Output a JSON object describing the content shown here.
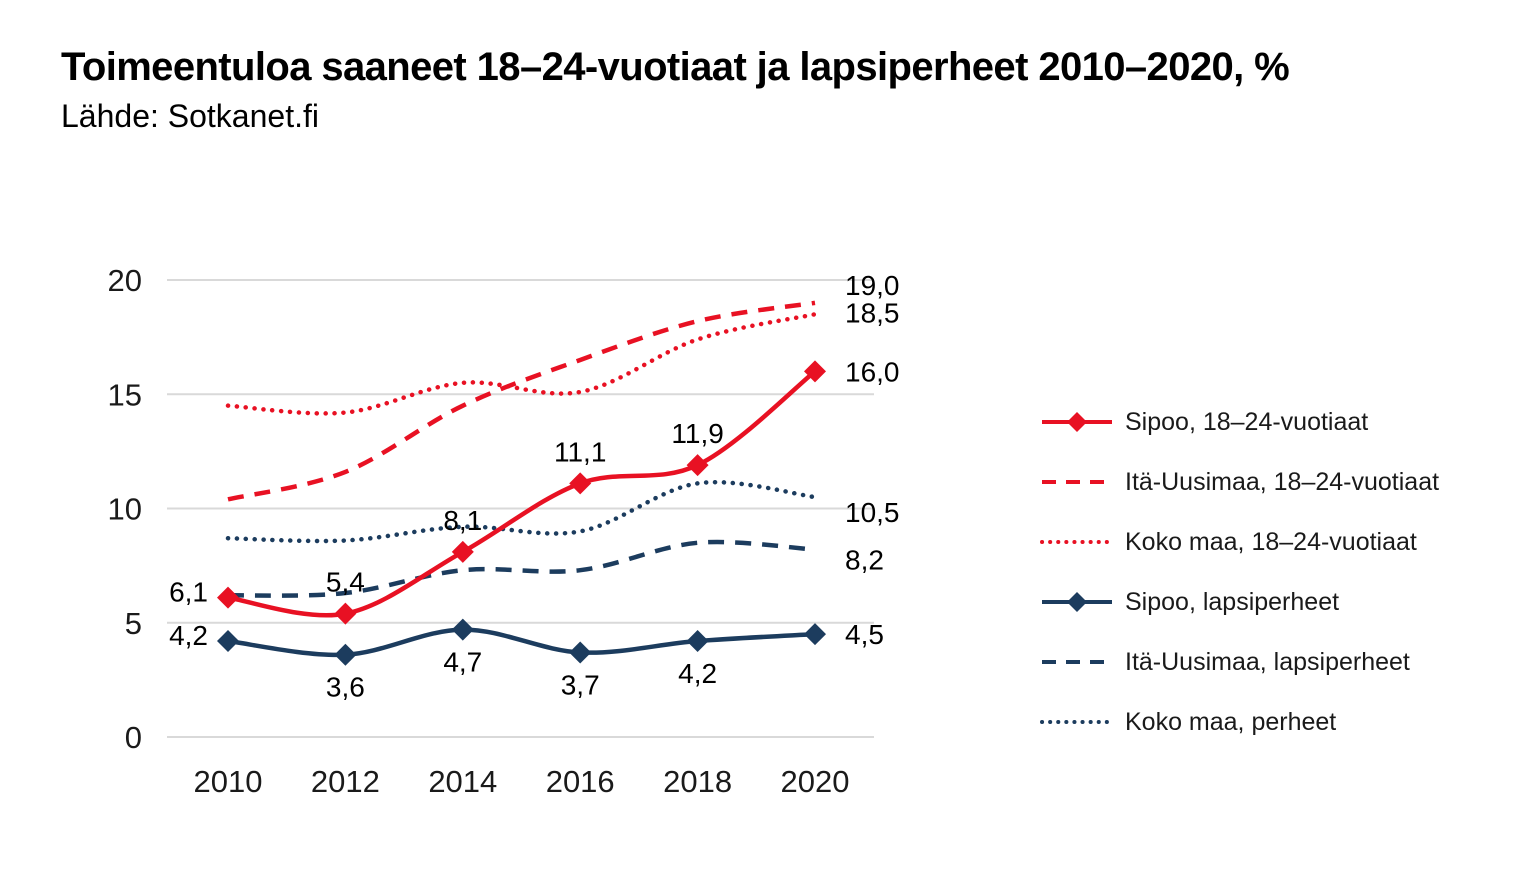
{
  "chart_data": {
    "type": "line",
    "title": "Toimeentuloa saaneet 18–24-vuotiaat ja lapsiperheet  2010–2020, %",
    "source": "Lähde: Sotkanet.fi",
    "x": [
      2010,
      2012,
      2014,
      2016,
      2018,
      2020
    ],
    "x_tick_labels": [
      "2010",
      "2012",
      "2014",
      "2016",
      "2018",
      "2020"
    ],
    "y_ticks": [
      0,
      5,
      10,
      15,
      20
    ],
    "ylim": [
      0,
      20
    ],
    "grid": "horizontal",
    "legend_position": "right",
    "colors": {
      "red": "#e81123",
      "navy": "#1c3c5e",
      "grid": "#d9d9d9",
      "text": "#1a1a1a"
    },
    "series": [
      {
        "name": "Itä-Uusimaa, 18–24-vuotiaat",
        "color": "red",
        "style": "dashed",
        "markers": false,
        "values": [
          10.4,
          11.6,
          14.5,
          16.5,
          18.2,
          19.0
        ],
        "end_label": "19,0"
      },
      {
        "name": "Koko maa, 18–24-vuotiaat",
        "color": "red",
        "style": "dotted",
        "markers": false,
        "values": [
          14.5,
          14.2,
          15.5,
          15.1,
          17.4,
          18.5
        ],
        "end_label": "18,5"
      },
      {
        "name": "Koko maa, perheet",
        "color": "navy",
        "style": "dotted",
        "markers": false,
        "values": [
          8.7,
          8.6,
          9.2,
          9.0,
          11.1,
          10.5
        ],
        "end_label": "10,5"
      },
      {
        "name": "Itä-Uusimaa, lapsiperheet",
        "color": "navy",
        "style": "dashed",
        "markers": false,
        "values": [
          6.2,
          6.3,
          7.3,
          7.3,
          8.5,
          8.2
        ],
        "end_label": "8,2"
      },
      {
        "name": "Sipoo, lapsiperheet",
        "color": "navy",
        "style": "solid",
        "markers": true,
        "values": [
          4.2,
          3.6,
          4.7,
          3.7,
          4.2,
          4.5
        ],
        "point_labels": [
          "4,2",
          "3,6",
          "4,7",
          "3,7",
          "4,2",
          "4,5"
        ],
        "label_placement": [
          "left",
          "below",
          "below",
          "below",
          "below",
          "right"
        ]
      },
      {
        "name": "Sipoo, 18–24-vuotiaat",
        "color": "red",
        "style": "solid",
        "markers": true,
        "values": [
          6.1,
          5.4,
          8.1,
          11.1,
          11.9,
          16.0
        ],
        "point_labels": [
          "6,1",
          "5,4",
          "8,1",
          "11,1",
          "11,9",
          "16,0"
        ],
        "label_placement": [
          "left",
          "above",
          "above",
          "above",
          "above",
          "right"
        ]
      }
    ],
    "legend": [
      "Sipoo, 18–24-vuotiaat",
      "Itä-Uusimaa, 18–24-vuotiaat",
      "Koko maa, 18–24-vuotiaat",
      "Sipoo, lapsiperheet",
      "Itä-Uusimaa, lapsiperheet",
      "Koko maa, perheet"
    ]
  }
}
